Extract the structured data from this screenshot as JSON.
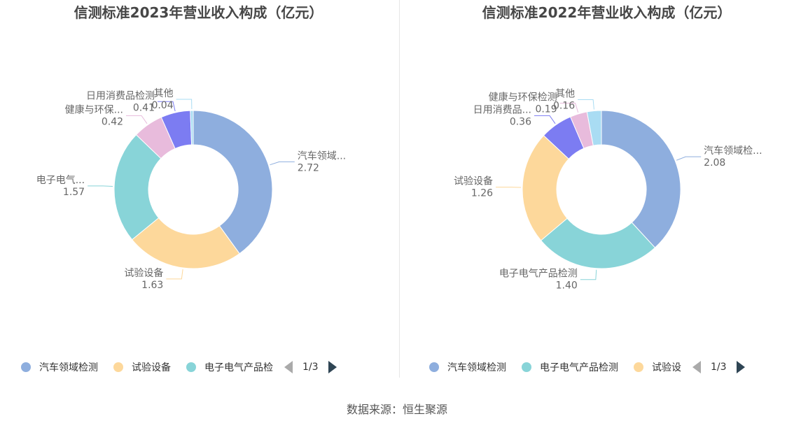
{
  "chart_data": [
    {
      "type": "pie",
      "title": "信测标准2023年营业收入构成（亿元）",
      "slices": [
        {
          "name": "汽车领域检测",
          "label": "汽车领域...",
          "value": 2.72,
          "value_text": "2.72",
          "color": "#8eaede"
        },
        {
          "name": "试验设备",
          "label": "试验设备",
          "value": 1.63,
          "value_text": "1.63",
          "color": "#fdd89b"
        },
        {
          "name": "电子电气产品检测",
          "label": "电子电气...",
          "value": 1.57,
          "value_text": "1.57",
          "color": "#88d4d8"
        },
        {
          "name": "健康与环保检测",
          "label": "健康与环保...",
          "value": 0.42,
          "value_text": "0.42",
          "color": "#e8bbdc"
        },
        {
          "name": "日用消费品检测",
          "label": "日用消费品检测",
          "value": 0.41,
          "value_text": "0.41",
          "color": "#7c7cf2"
        },
        {
          "name": "其他",
          "label": "其他",
          "value": 0.04,
          "value_text": "0.04",
          "color": "#a9dcf3"
        }
      ],
      "legend": {
        "placement": "bottom",
        "items": [
          "汽车领域检测",
          "试验设备",
          "电子电气产品检"
        ],
        "page": "1/3"
      }
    },
    {
      "type": "pie",
      "title": "信测标准2022年营业收入构成（亿元）",
      "slices": [
        {
          "name": "汽车领域检测",
          "label": "汽车领域检...",
          "value": 2.08,
          "value_text": "2.08",
          "color": "#8eaede"
        },
        {
          "name": "电子电气产品检测",
          "label": "电子电气产品检测",
          "value": 1.4,
          "value_text": "1.40",
          "color": "#88d4d8"
        },
        {
          "name": "试验设备",
          "label": "试验设备",
          "value": 1.26,
          "value_text": "1.26",
          "color": "#fdd89b"
        },
        {
          "name": "日用消费品检测",
          "label": "日用消费品...",
          "value": 0.36,
          "value_text": "0.36",
          "color": "#7c7cf2"
        },
        {
          "name": "健康与环保检测",
          "label": "健康与环保检测",
          "value": 0.19,
          "value_text": "0.19",
          "color": "#e8bbdc"
        },
        {
          "name": "其他",
          "label": "其他",
          "value": 0.16,
          "value_text": "0.16",
          "color": "#a9dcf3"
        }
      ],
      "legend": {
        "placement": "bottom",
        "items": [
          "汽车领域检测",
          "电子电气产品检测",
          "试验设"
        ],
        "page": "1/3"
      }
    }
  ],
  "source": "数据来源：恒生聚源"
}
